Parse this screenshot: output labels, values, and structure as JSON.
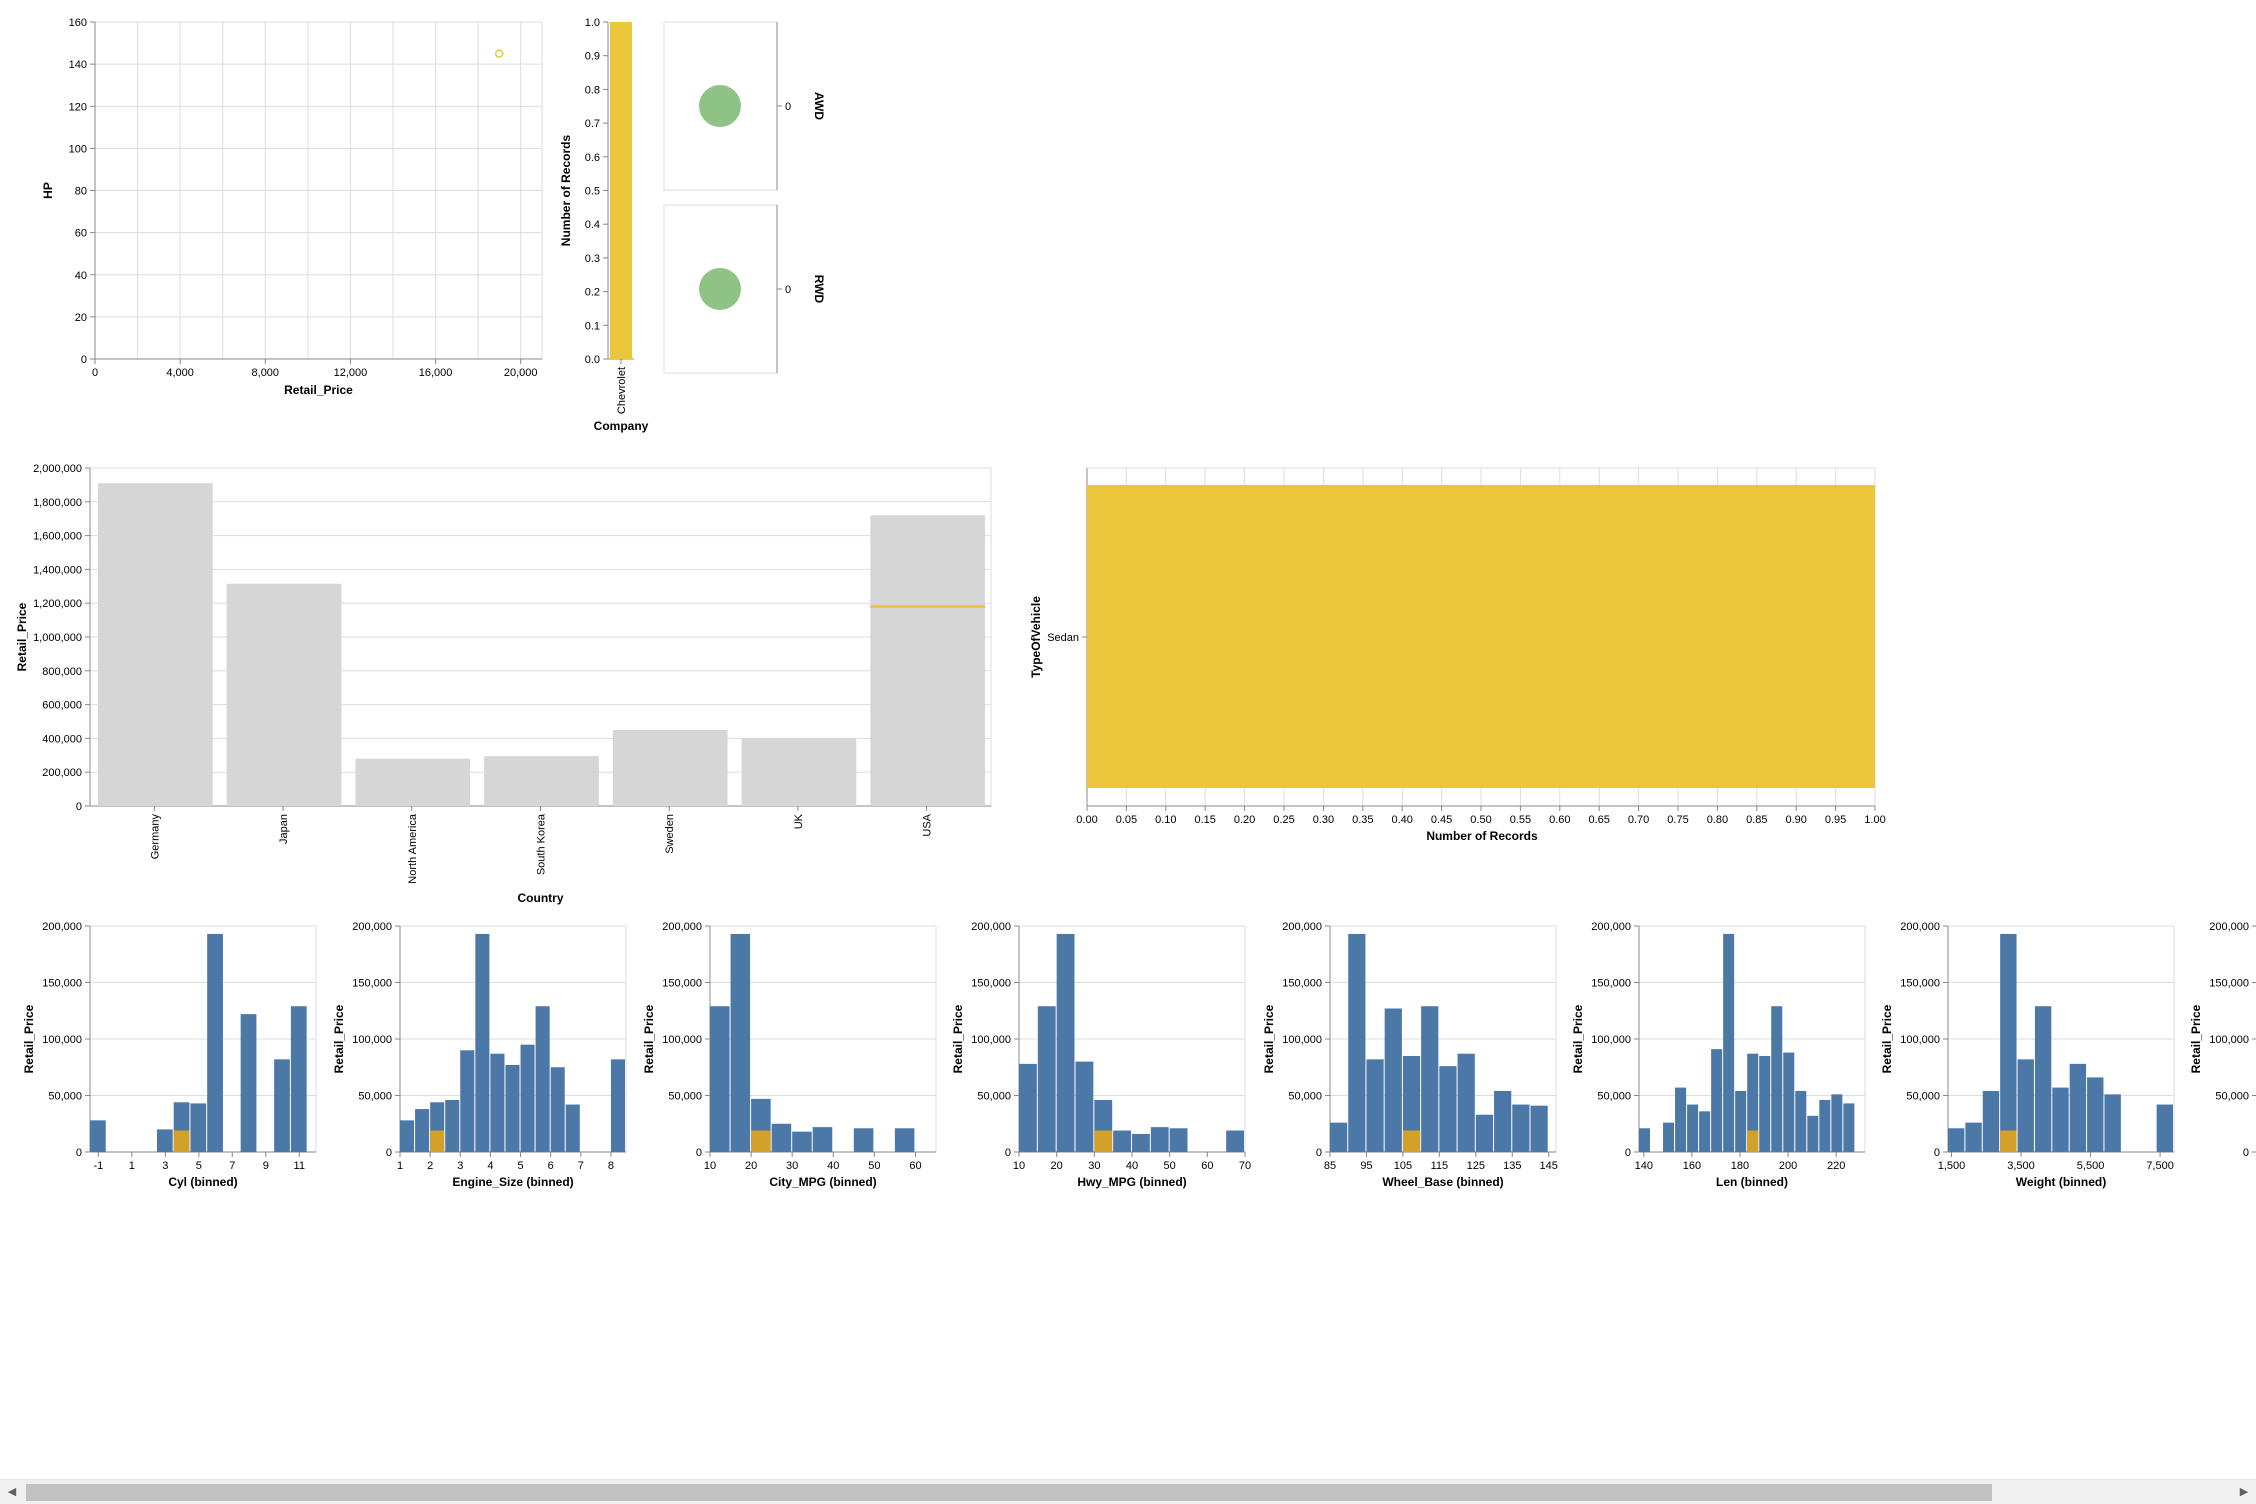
{
  "colors": {
    "highlight": "#ecc63a",
    "histogram_bar": "#4c78a8",
    "histogram_selected": "#d3a02a",
    "country_bar": "#d6d6d6",
    "circle": "#83bd79",
    "grid": "#dddddd"
  },
  "chart_data": [
    {
      "id": "scatter",
      "type": "scatter",
      "xlabel": "Retail_Price",
      "ylabel": "HP",
      "xlim": [
        0,
        21000
      ],
      "ylim": [
        0,
        160
      ],
      "xticks": [
        0,
        4000,
        8000,
        12000,
        16000,
        20000
      ],
      "xtick_labels": [
        "0",
        "4,000",
        "8,000",
        "12,000",
        "16,000",
        "20,000"
      ],
      "yticks": [
        0,
        20,
        40,
        60,
        80,
        100,
        120,
        140,
        160
      ],
      "ytick_labels": [
        "0",
        "20",
        "40",
        "60",
        "80",
        "100",
        "120",
        "140",
        "160"
      ],
      "points": [
        {
          "x": 18990,
          "y": 145
        }
      ],
      "grid": true
    },
    {
      "id": "company",
      "type": "bar",
      "xlabel": "Company",
      "ylabel": "Number of Records",
      "categories": [
        "Chevrolet"
      ],
      "values": [
        1
      ],
      "ylim": [
        0,
        1
      ],
      "ytick_labels": [
        "0.0",
        "0.1",
        "0.2",
        "0.3",
        "0.4",
        "0.5",
        "0.6",
        "0.7",
        "0.8",
        "0.9",
        "1.0"
      ]
    },
    {
      "id": "drive",
      "type": "scatter",
      "rows": [
        "AWD",
        "RWD"
      ],
      "tick_label": "0",
      "points": [
        {
          "row": "AWD",
          "value": 0
        },
        {
          "row": "RWD",
          "value": 0
        }
      ]
    },
    {
      "id": "country",
      "type": "bar",
      "xlabel": "Country",
      "ylabel": "Retail_Price",
      "categories": [
        "Germany",
        "Japan",
        "North America",
        "South Korea",
        "Sweden",
        "UK",
        "USA"
      ],
      "values": [
        1910000,
        1315000,
        280000,
        295000,
        450000,
        400000,
        1720000
      ],
      "highlight": {
        "category": "USA",
        "value": 1180000
      },
      "ylim": [
        0,
        2000000
      ],
      "ytick_labels": [
        "0",
        "200,000",
        "400,000",
        "600,000",
        "800,000",
        "1,000,000",
        "1,200,000",
        "1,400,000",
        "1,600,000",
        "1,800,000",
        "2,000,000"
      ]
    },
    {
      "id": "type_of_vehicle",
      "type": "bar",
      "orientation": "horizontal",
      "xlabel": "Number of Records",
      "ylabel": "TypeOfVehicle",
      "categories": [
        "Sedan"
      ],
      "values": [
        1
      ],
      "xlim": [
        0,
        1
      ],
      "xtick_labels": [
        "0.00",
        "0.05",
        "0.10",
        "0.15",
        "0.20",
        "0.25",
        "0.30",
        "0.35",
        "0.40",
        "0.45",
        "0.50",
        "0.55",
        "0.60",
        "0.65",
        "0.70",
        "0.75",
        "0.80",
        "0.85",
        "0.90",
        "0.95",
        "1.00"
      ]
    },
    {
      "id": "hist_cyl",
      "type": "bar",
      "xlabel": "Cyl (binned)",
      "ylabel": "Retail_Price",
      "xlim": [
        -1.5,
        12
      ],
      "ylim": [
        0,
        200000
      ],
      "xticks": [
        -1,
        1,
        3,
        5,
        7,
        9,
        11
      ],
      "xtick_labels": [
        "-1",
        "1",
        "3",
        "5",
        "7",
        "9",
        "11"
      ],
      "ytick_labels": [
        "0",
        "50,000",
        "100,000",
        "150,000",
        "200,000"
      ],
      "bins": [
        [
          -1.5,
          -0.5,
          28000
        ],
        [
          2.5,
          3.5,
          20000
        ],
        [
          3.5,
          4.5,
          44000
        ],
        [
          4.5,
          5.5,
          43000
        ],
        [
          5.5,
          6.5,
          193000
        ],
        [
          7.5,
          8.5,
          122000
        ],
        [
          9.5,
          10.5,
          82000
        ],
        [
          10.5,
          11.5,
          129000
        ]
      ],
      "selected": [
        3.5,
        4.5,
        19000
      ]
    },
    {
      "id": "hist_engine",
      "type": "bar",
      "xlabel": "Engine_Size (binned)",
      "ylabel": "Retail_Price",
      "xlim": [
        1,
        8.5
      ],
      "ylim": [
        0,
        200000
      ],
      "xticks": [
        1,
        2,
        3,
        4,
        5,
        6,
        7,
        8
      ],
      "xtick_labels": [
        "1",
        "2",
        "3",
        "4",
        "5",
        "6",
        "7",
        "8"
      ],
      "ytick_labels": [
        "0",
        "50,000",
        "100,000",
        "150,000",
        "200,000"
      ],
      "bins": [
        [
          1.0,
          1.5,
          28000
        ],
        [
          1.5,
          2.0,
          38000
        ],
        [
          2.0,
          2.5,
          44000
        ],
        [
          2.5,
          3.0,
          46000
        ],
        [
          3.0,
          3.5,
          90000
        ],
        [
          3.5,
          4.0,
          193000
        ],
        [
          4.0,
          4.5,
          87000
        ],
        [
          4.5,
          5.0,
          77000
        ],
        [
          5.0,
          5.5,
          95000
        ],
        [
          5.5,
          6.0,
          129000
        ],
        [
          6.0,
          6.5,
          75000
        ],
        [
          6.5,
          7.0,
          42000
        ],
        [
          8.0,
          8.5,
          82000
        ]
      ],
      "selected": [
        2.0,
        2.5,
        19000
      ]
    },
    {
      "id": "hist_city",
      "type": "bar",
      "xlabel": "City_MPG (binned)",
      "ylabel": "Retail_Price",
      "xlim": [
        10,
        65
      ],
      "ylim": [
        0,
        200000
      ],
      "xticks": [
        10,
        20,
        30,
        40,
        50,
        60
      ],
      "xtick_labels": [
        "10",
        "20",
        "30",
        "40",
        "50",
        "60"
      ],
      "ytick_labels": [
        "0",
        "50,000",
        "100,000",
        "150,000",
        "200,000"
      ],
      "bins": [
        [
          10,
          15,
          129000
        ],
        [
          15,
          20,
          193000
        ],
        [
          20,
          25,
          47000
        ],
        [
          25,
          30,
          25000
        ],
        [
          30,
          35,
          18000
        ],
        [
          35,
          40,
          22000
        ],
        [
          45,
          50,
          21000
        ],
        [
          55,
          60,
          21000
        ]
      ],
      "selected": [
        20,
        25,
        19000
      ]
    },
    {
      "id": "hist_hwy",
      "type": "bar",
      "xlabel": "Hwy_MPG (binned)",
      "ylabel": "Retail_Price",
      "xlim": [
        10,
        70
      ],
      "ylim": [
        0,
        200000
      ],
      "xticks": [
        10,
        20,
        30,
        40,
        50,
        60,
        70
      ],
      "xtick_labels": [
        "10",
        "20",
        "30",
        "40",
        "50",
        "60",
        "70"
      ],
      "ytick_labels": [
        "0",
        "50,000",
        "100,000",
        "150,000",
        "200,000"
      ],
      "bins": [
        [
          10,
          15,
          78000
        ],
        [
          15,
          20,
          129000
        ],
        [
          20,
          25,
          193000
        ],
        [
          25,
          30,
          80000
        ],
        [
          30,
          35,
          46000
        ],
        [
          35,
          40,
          19000
        ],
        [
          40,
          45,
          16000
        ],
        [
          45,
          50,
          22000
        ],
        [
          50,
          55,
          21000
        ],
        [
          65,
          70,
          19000
        ]
      ],
      "selected": [
        30,
        35,
        19000
      ]
    },
    {
      "id": "hist_wheelbase",
      "type": "bar",
      "xlabel": "Wheel_Base (binned)",
      "ylabel": "Retail_Price",
      "xlim": [
        85,
        147
      ],
      "ylim": [
        0,
        200000
      ],
      "xticks": [
        85,
        95,
        105,
        115,
        125,
        135,
        145
      ],
      "xtick_labels": [
        "85",
        "95",
        "105",
        "115",
        "125",
        "135",
        "145"
      ],
      "ytick_labels": [
        "0",
        "50,000",
        "100,000",
        "150,000",
        "200,000"
      ],
      "bins": [
        [
          85,
          90,
          26000
        ],
        [
          90,
          95,
          193000
        ],
        [
          95,
          100,
          82000
        ],
        [
          100,
          105,
          127000
        ],
        [
          105,
          110,
          85000
        ],
        [
          110,
          115,
          129000
        ],
        [
          115,
          120,
          76000
        ],
        [
          120,
          125,
          87000
        ],
        [
          125,
          130,
          33000
        ],
        [
          130,
          135,
          54000
        ],
        [
          135,
          140,
          42000
        ],
        [
          140,
          145,
          41000
        ]
      ],
      "selected": [
        105,
        110,
        19000
      ]
    },
    {
      "id": "hist_len",
      "type": "bar",
      "xlabel": "Len (binned)",
      "ylabel": "Retail_Price",
      "xlim": [
        138,
        232
      ],
      "ylim": [
        0,
        200000
      ],
      "xticks": [
        140,
        160,
        180,
        200,
        220
      ],
      "xtick_labels": [
        "140",
        "160",
        "180",
        "200",
        "220"
      ],
      "ytick_labels": [
        "0",
        "50,000",
        "100,000",
        "150,000",
        "200,000"
      ],
      "bins": [
        [
          138,
          143,
          21000
        ],
        [
          148,
          153,
          26000
        ],
        [
          153,
          158,
          57000
        ],
        [
          158,
          163,
          42000
        ],
        [
          163,
          168,
          36000
        ],
        [
          168,
          173,
          91000
        ],
        [
          173,
          178,
          193000
        ],
        [
          178,
          183,
          54000
        ],
        [
          183,
          188,
          87000
        ],
        [
          188,
          193,
          85000
        ],
        [
          193,
          198,
          129000
        ],
        [
          198,
          203,
          88000
        ],
        [
          203,
          208,
          54000
        ],
        [
          208,
          213,
          32000
        ],
        [
          213,
          218,
          46000
        ],
        [
          218,
          223,
          51000
        ],
        [
          223,
          228,
          43000
        ]
      ],
      "selected": [
        183,
        188,
        19000
      ]
    },
    {
      "id": "hist_weight",
      "type": "bar",
      "xlabel": "Weight (binned)",
      "ylabel": "Retail_Price",
      "xlim": [
        1400,
        7900
      ],
      "ylim": [
        0,
        200000
      ],
      "xticks": [
        1500,
        3500,
        5500,
        7500
      ],
      "xtick_labels": [
        "1,500",
        "3,500",
        "5,500",
        "7,500"
      ],
      "ytick_labels": [
        "0",
        "50,000",
        "100,000",
        "150,000",
        "200,000"
      ],
      "bins": [
        [
          1400,
          1900,
          21000
        ],
        [
          1900,
          2400,
          26000
        ],
        [
          2400,
          2900,
          54000
        ],
        [
          2900,
          3400,
          193000
        ],
        [
          3400,
          3900,
          82000
        ],
        [
          3900,
          4400,
          129000
        ],
        [
          4400,
          4900,
          57000
        ],
        [
          4900,
          5400,
          78000
        ],
        [
          5400,
          5900,
          66000
        ],
        [
          5900,
          6400,
          51000
        ],
        [
          7400,
          7900,
          42000
        ]
      ],
      "selected": [
        2900,
        3400,
        19000
      ]
    },
    {
      "id": "hist_partial",
      "type": "bar",
      "ylabel": "Retail_Price",
      "ylim": [
        0,
        200000
      ],
      "ytick_labels": [
        "0",
        "50,000",
        "100,000",
        "150,000",
        "200,000"
      ],
      "bins": []
    }
  ]
}
